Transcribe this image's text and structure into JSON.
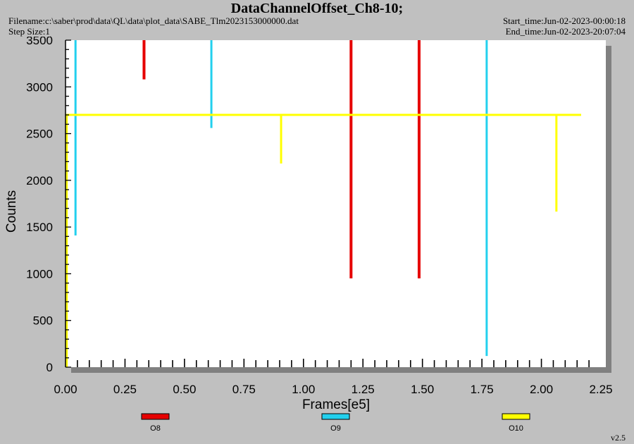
{
  "header": {
    "filename": "Filename:c:\\saber\\prod\\data\\QL\\data\\plot_data\\SABE_Tlm2023153000000.dat",
    "step_size": "Step Size:1",
    "start_time": "Start_time:Jun-02-2023-00:00:18",
    "end_time": "End_time:Jun-02-2023-20:07:04"
  },
  "version": "v2.5",
  "chart_data": {
    "type": "line",
    "title": "DataChannelOffset_Ch8-10;",
    "xlabel": "Frames[e5]",
    "ylabel": "Counts",
    "xlim": [
      0,
      2.25
    ],
    "ylim": [
      0,
      3500
    ],
    "x_tick_labels": [
      "0.00",
      "0.25",
      "0.50",
      "0.75",
      "1.00",
      "1.25",
      "1.50",
      "1.75",
      "2.00",
      "2.25"
    ],
    "y_tick_labels": [
      "0",
      "500",
      "1000",
      "1500",
      "2000",
      "2500",
      "3000",
      "3500"
    ],
    "x_minor_tick_step": 0.05,
    "y_minor_tick_step": 100,
    "grid": false,
    "legend_position": "bottom",
    "series": [
      {
        "name": "O8",
        "color": "#e60000",
        "x": [
          0.33,
          1.2,
          1.486
        ],
        "y": [
          3080,
          950,
          950
        ]
      },
      {
        "name": "O9",
        "color": "#22d0ee",
        "x": [
          0.042,
          0.613,
          1.77
        ],
        "y": [
          1410,
          2560,
          120
        ]
      },
      {
        "name": "O10",
        "color": "#ffff00",
        "baseline": 2700,
        "x_range": [
          0,
          2.167
        ],
        "x": [
          0.005,
          0.906,
          2.063
        ],
        "y": [
          0,
          2180,
          1665
        ]
      }
    ]
  }
}
